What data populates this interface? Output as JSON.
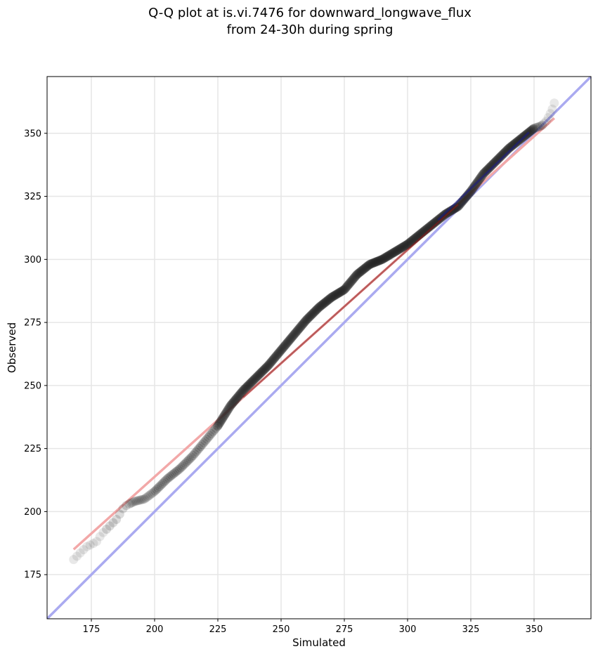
{
  "chart_data": {
    "type": "scatter",
    "title_lines": [
      "Q-Q plot at is.vi.7476 for downward_longwave_flux",
      "from 24-30h during spring"
    ],
    "xlabel": "Simulated",
    "ylabel": "Observed",
    "xlim": [
      157.5,
      372.5
    ],
    "ylim": [
      157.5,
      372.5
    ],
    "xticks": [
      175,
      200,
      225,
      250,
      275,
      300,
      325,
      350
    ],
    "yticks": [
      175,
      200,
      225,
      250,
      275,
      300,
      325,
      350
    ],
    "grid": true,
    "colors": {
      "points": "#222222",
      "reference_line": "#aaaaf0",
      "fit_line": "#f2a8a8",
      "fit_line_dense": "#8b1a1a",
      "dense_region": "#1a1a8c"
    },
    "reference_line": {
      "name": "1:1",
      "points": [
        [
          157.5,
          157.5
        ],
        [
          372.5,
          372.5
        ]
      ]
    },
    "fit_line": {
      "points": [
        [
          168,
          185
        ],
        [
          358,
          356
        ]
      ]
    },
    "quantile_anchors": [
      [
        168,
        181
      ],
      [
        170,
        183
      ],
      [
        173,
        186
      ],
      [
        177,
        188
      ],
      [
        179,
        191
      ],
      [
        182,
        194
      ],
      [
        185,
        197
      ],
      [
        188,
        202
      ],
      [
        192,
        204
      ],
      [
        196,
        205
      ],
      [
        200,
        208
      ],
      [
        205,
        213
      ],
      [
        210,
        217
      ],
      [
        215,
        222
      ],
      [
        220,
        228
      ],
      [
        225,
        234
      ],
      [
        230,
        242
      ],
      [
        235,
        248
      ],
      [
        240,
        253
      ],
      [
        245,
        258
      ],
      [
        250,
        264
      ],
      [
        255,
        270
      ],
      [
        260,
        276
      ],
      [
        265,
        281
      ],
      [
        270,
        285
      ],
      [
        275,
        288
      ],
      [
        280,
        294
      ],
      [
        285,
        298
      ],
      [
        290,
        300
      ],
      [
        295,
        303
      ],
      [
        300,
        306
      ],
      [
        305,
        310
      ],
      [
        310,
        314
      ],
      [
        315,
        318
      ],
      [
        320,
        321
      ],
      [
        325,
        327
      ],
      [
        330,
        334
      ],
      [
        335,
        339
      ],
      [
        340,
        344
      ],
      [
        345,
        348
      ],
      [
        350,
        352
      ],
      [
        353,
        353
      ],
      [
        355,
        355
      ],
      [
        357,
        359
      ],
      [
        358,
        362
      ]
    ]
  }
}
